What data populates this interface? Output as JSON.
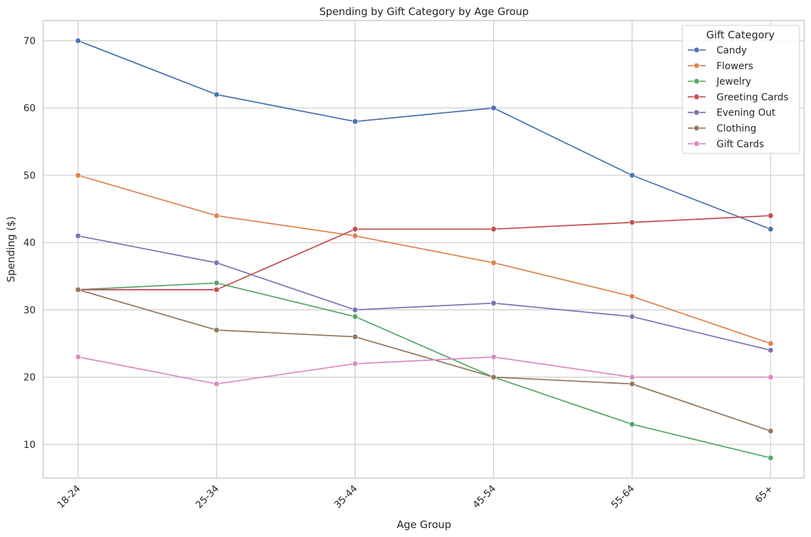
{
  "chart_data": {
    "type": "line",
    "title": "Spending by Gift Category by Age Group",
    "xlabel": "Age Group",
    "ylabel": "Spending ($)",
    "categories": [
      "18-24",
      "25-34",
      "35-44",
      "45-54",
      "55-64",
      "65+"
    ],
    "ylim": [
      5,
      73
    ],
    "yticks": [
      10,
      20,
      30,
      40,
      50,
      60,
      70
    ],
    "grid": true,
    "legend_title": "Gift Category",
    "legend_position": "top-right",
    "series": [
      {
        "name": "Candy",
        "color": "#4c72b0",
        "values": [
          70,
          62,
          58,
          60,
          50,
          42
        ]
      },
      {
        "name": "Flowers",
        "color": "#dd8452",
        "values": [
          50,
          44,
          41,
          37,
          32,
          25
        ]
      },
      {
        "name": "Jewelry",
        "color": "#55a868",
        "values": [
          33,
          34,
          29,
          20,
          13,
          8
        ]
      },
      {
        "name": "Greeting Cards",
        "color": "#c44e52",
        "values": [
          33,
          33,
          42,
          42,
          43,
          44
        ]
      },
      {
        "name": "Evening Out",
        "color": "#8172b3",
        "values": [
          41,
          37,
          30,
          31,
          29,
          24
        ]
      },
      {
        "name": "Clothing",
        "color": "#937860",
        "values": [
          33,
          27,
          26,
          20,
          19,
          12
        ]
      },
      {
        "name": "Gift Cards",
        "color": "#da8bc3",
        "values": [
          23,
          19,
          22,
          23,
          20,
          20
        ]
      }
    ]
  }
}
